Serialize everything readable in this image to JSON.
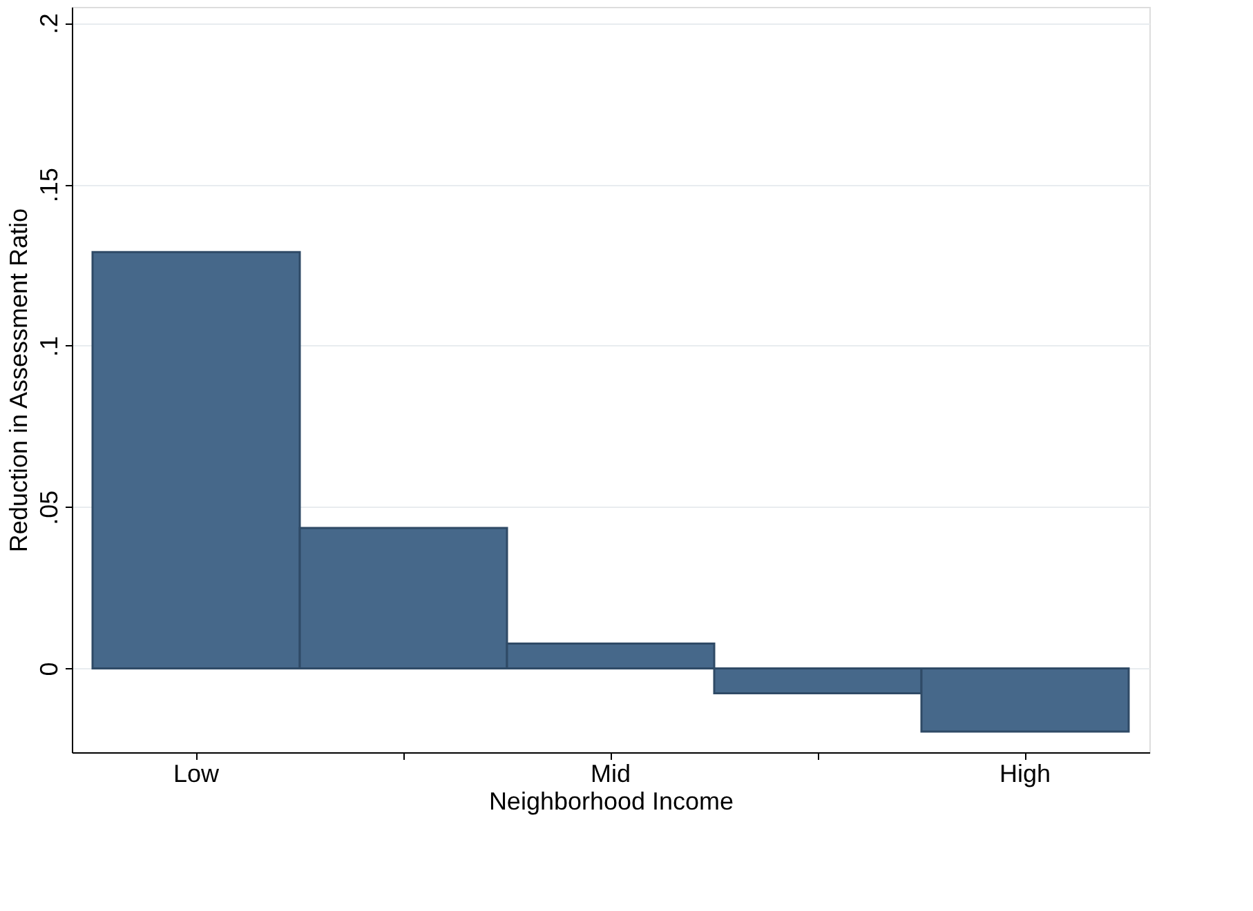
{
  "chart_data": {
    "type": "bar",
    "xlabel": "Neighborhood Income",
    "ylabel": "Reduction in Assessment Ratio",
    "categories": [
      "Low",
      null,
      "Mid",
      null,
      "High"
    ],
    "values": [
      0.129,
      0.0435,
      0.0077,
      -0.0077,
      -0.0196
    ],
    "color": "#46688a",
    "ylim": [
      -0.026,
      0.205
    ],
    "yticks": [
      {
        "value": 0,
        "label": "0"
      },
      {
        "value": 0.05,
        "label": ".05"
      },
      {
        "value": 0.1,
        "label": ".1"
      },
      {
        "value": 0.15,
        "label": ".15"
      },
      {
        "value": 0.2,
        "label": ".2"
      }
    ],
    "grid": "y"
  }
}
